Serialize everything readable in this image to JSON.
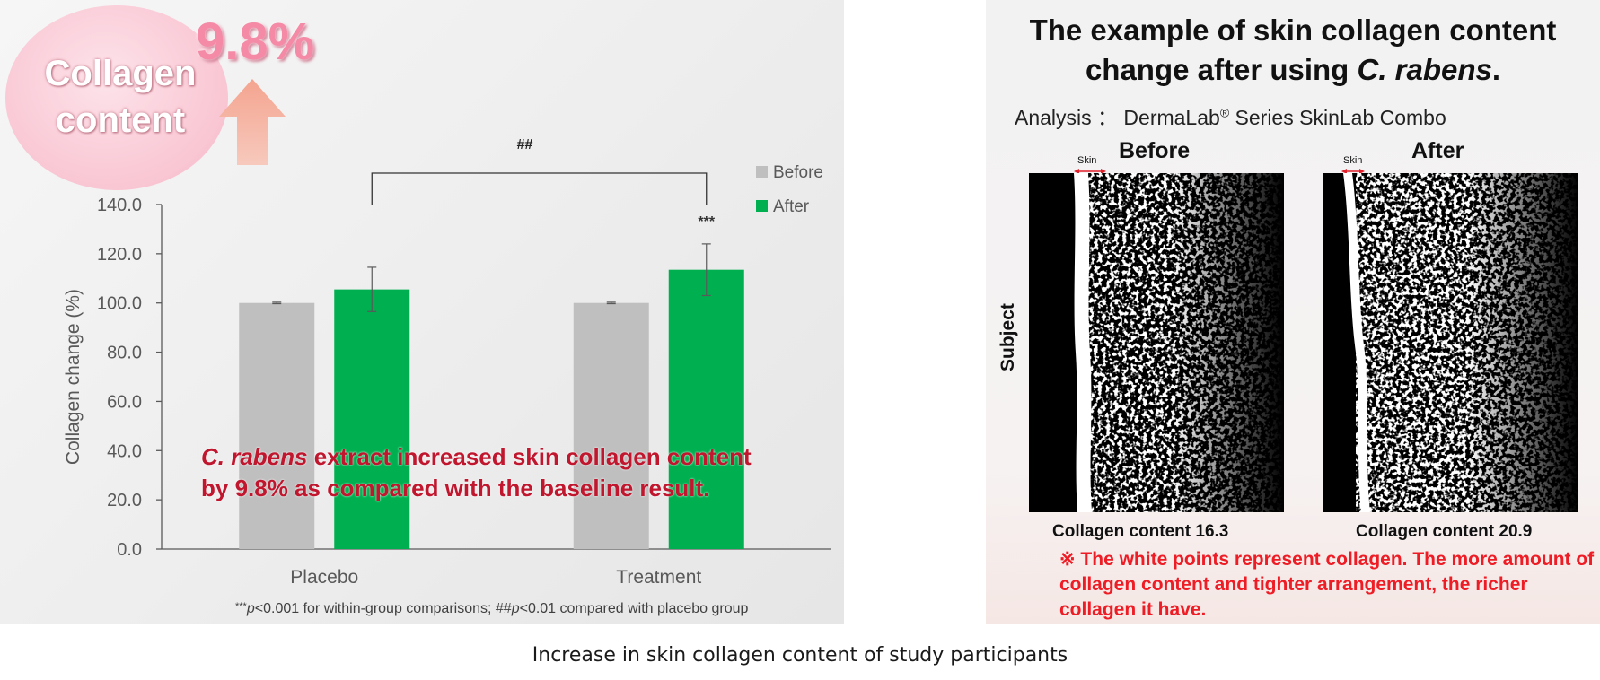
{
  "badge": {
    "label": "Collagen\ncontent",
    "value": "9.8%"
  },
  "chart_data": {
    "type": "bar",
    "categories": [
      "Placebo",
      "Treatment"
    ],
    "series": [
      {
        "name": "Before",
        "color": "#bfbfbf",
        "values": [
          100.0,
          100.0
        ],
        "errors": [
          0.3,
          0.3
        ]
      },
      {
        "name": "After",
        "color": "#00b050",
        "values": [
          105.5,
          113.5
        ],
        "errors": [
          9.0,
          10.5
        ]
      }
    ],
    "ylabel": "Collagen change (%)",
    "xlabel": "",
    "ylim": [
      0,
      140
    ],
    "yticks": [
      "0.0",
      "20.0",
      "40.0",
      "60.0",
      "80.0",
      "100.0",
      "120.0",
      "140.0"
    ],
    "grid": false,
    "legend_position": "top-right",
    "annotations": {
      "within_group_marker": "***",
      "between_group_marker": "##"
    },
    "claim": {
      "species": "C. rabens",
      "line1_rest": " extract increased skin collagen content",
      "line2": "by 9.8% as compared with the baseline result."
    },
    "footnote": {
      "marker1": "***",
      "p1": "p",
      "text1": "<0.001 for within-group comparisons;  ##",
      "p2": "p",
      "text2": "<0.01 compared with placebo group"
    }
  },
  "imaging": {
    "title_line1": "The example of skin collagen content",
    "title_line2_prefix": "change after using ",
    "title_line2_species": "C. rabens",
    "title_line2_suffix": ".",
    "analysis_prefix": "Analysis ： DermaLab",
    "analysis_reg": "®",
    "analysis_suffix": " Series SkinLab Combo",
    "before_label": "Before",
    "after_label": "After",
    "skin_tag": "Skin",
    "subject_label": "Subject",
    "before_caption": "Collagen content 16.3",
    "after_caption": "Collagen content 20.9",
    "note": "※ The white points represent collagen. The more amount of collagen content and tighter arrangement, the richer collagen it have."
  },
  "figure_caption": "Increase in skin collagen content of study participants"
}
